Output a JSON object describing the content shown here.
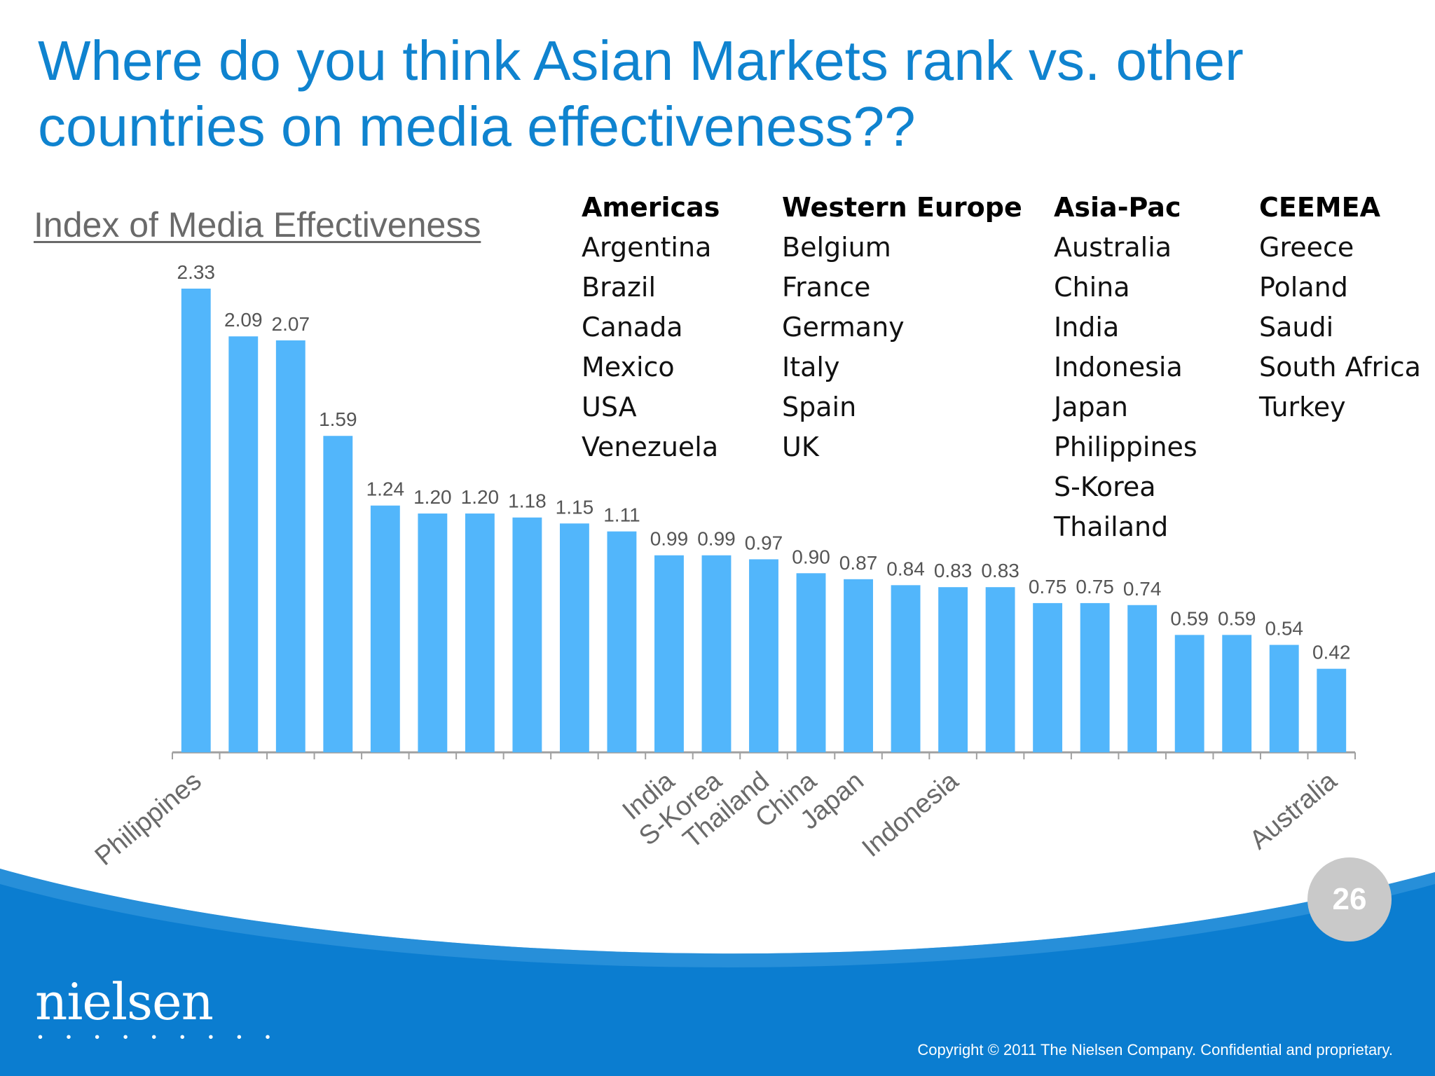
{
  "slide": {
    "title": "Where do you think Asian Markets rank vs. other countries on media effectiveness??",
    "page_number": "26",
    "logo_text": "nielsen",
    "logo_dots": "• • • • • • • • •",
    "copyright": "Copyright © 2011 The Nielsen Company. Confidential and proprietary."
  },
  "regions": [
    {
      "header": "Americas",
      "items": [
        "Argentina",
        "Brazil",
        "Canada",
        "Mexico",
        "USA",
        "Venezuela"
      ]
    },
    {
      "header": "Western Europe",
      "items": [
        "Belgium",
        "France",
        "Germany",
        "Italy",
        "Spain",
        "UK"
      ]
    },
    {
      "header": "Asia-Pac",
      "items": [
        "Australia",
        "China",
        "India",
        "Indonesia",
        "Japan",
        "Philippines",
        "S-Korea",
        "Thailand"
      ]
    },
    {
      "header": "CEEMEA",
      "items": [
        "Greece",
        "Poland",
        "Saudi",
        "South Africa",
        "Turkey"
      ]
    }
  ],
  "chart_data": {
    "type": "bar",
    "title": "Index of Media Effectiveness",
    "xlabel": "",
    "ylabel": "",
    "ylim": [
      0,
      2.5
    ],
    "grid": false,
    "categories": [
      "Philippines",
      "",
      "",
      "",
      "",
      "",
      "",
      "",
      "",
      "",
      "India",
      "S-Korea",
      "Thailand",
      "China",
      "Japan",
      "",
      "Indonesia",
      "",
      "",
      "",
      "",
      "",
      "",
      "",
      "Australia"
    ],
    "values": [
      2.33,
      2.09,
      2.07,
      1.59,
      1.24,
      1.2,
      1.2,
      1.18,
      1.15,
      1.11,
      0.99,
      0.99,
      0.97,
      0.9,
      0.87,
      0.84,
      0.83,
      0.83,
      0.75,
      0.75,
      0.74,
      0.59,
      0.59,
      0.54,
      0.42
    ],
    "data_labels": [
      "2.33",
      "2.09",
      "2.07",
      "1.59",
      "1.24",
      "1.20",
      "1.20",
      "1.18",
      "1.15",
      "1.11",
      "0.99",
      "0.99",
      "0.97",
      "0.90",
      "0.87",
      "0.84",
      "0.83",
      "0.83",
      "0.75",
      "0.75",
      "0.74",
      "0.59",
      "0.59",
      "0.54",
      "0.42"
    ],
    "colors": {
      "bar": "#52b6fb",
      "axis": "#a0a0a0",
      "label": "#555555"
    }
  },
  "colors": {
    "brand_blue": "#0b7dd0",
    "title_blue": "#0f83cf",
    "badge_gray": "#c9c9c9"
  }
}
